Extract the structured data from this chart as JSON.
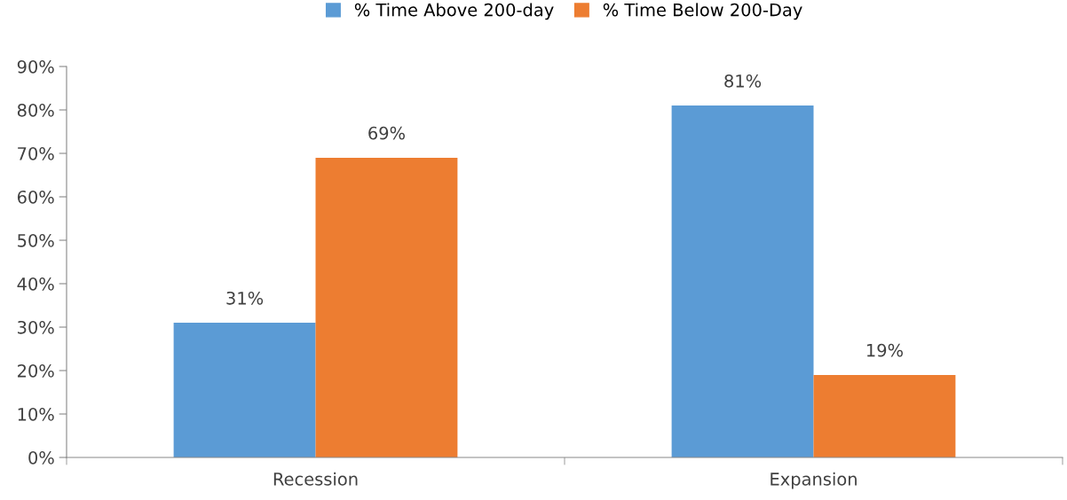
{
  "chart_data": {
    "type": "bar",
    "categories": [
      "Recession",
      "Expansion"
    ],
    "series": [
      {
        "name": "% Time Above 200-day",
        "color": "#5b9bd5",
        "values": [
          31,
          81
        ],
        "value_labels": [
          "31%",
          "81%"
        ]
      },
      {
        "name": "% Time Below 200-Day",
        "color": "#ed7d31",
        "values": [
          69,
          19
        ],
        "value_labels": [
          "69%",
          "19%"
        ]
      }
    ],
    "ylim": [
      0,
      90
    ],
    "yticks": [
      {
        "value": 0,
        "label": "0%"
      },
      {
        "value": 10,
        "label": "10%"
      },
      {
        "value": 20,
        "label": "20%"
      },
      {
        "value": 30,
        "label": "30%"
      },
      {
        "value": 40,
        "label": "40%"
      },
      {
        "value": 50,
        "label": "50%"
      },
      {
        "value": 60,
        "label": "60%"
      },
      {
        "value": 70,
        "label": "70%"
      },
      {
        "value": 80,
        "label": "80%"
      },
      {
        "value": 90,
        "label": "90%"
      }
    ],
    "grid": false,
    "legend": "top"
  }
}
